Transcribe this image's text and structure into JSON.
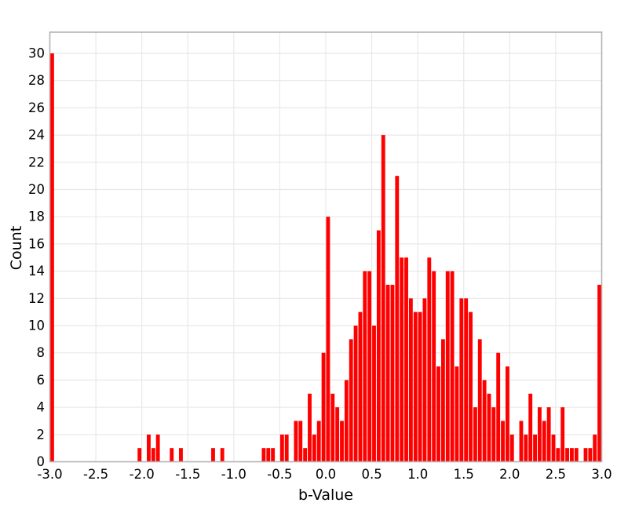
{
  "chart_data": {
    "type": "bar",
    "title": "",
    "xlabel": "b-Value",
    "ylabel": "Count",
    "xlim": [
      -3.0,
      3.0
    ],
    "ylim": [
      0,
      31.5
    ],
    "grid": true,
    "legend": "none",
    "bin_width": 0.05,
    "bar_color": "#fe0000",
    "grid_color": "#e8e8e8",
    "frame_color": "#b2b2b2",
    "text_color": "#000000",
    "x_tick_labels": [
      "-3.0",
      "-2.5",
      "-2.0",
      "-1.5",
      "-1.0",
      "-0.5",
      "0.0",
      "0.5",
      "1.0",
      "1.5",
      "2.0",
      "2.5",
      "3.0"
    ],
    "x_tick_values": [
      -3.0,
      -2.5,
      -2.0,
      -1.5,
      -1.0,
      -0.5,
      0.0,
      0.5,
      1.0,
      1.5,
      2.0,
      2.5,
      3.0
    ],
    "y_tick_labels": [
      "0",
      "2",
      "4",
      "6",
      "8",
      "10",
      "12",
      "14",
      "16",
      "18",
      "20",
      "22",
      "24",
      "26",
      "28",
      "30"
    ],
    "y_tick_values": [
      0,
      2,
      4,
      6,
      8,
      10,
      12,
      14,
      16,
      18,
      20,
      22,
      24,
      26,
      28,
      30
    ],
    "bars": [
      [
        -3.0,
        30
      ],
      [
        -2.05,
        1
      ],
      [
        -1.95,
        2
      ],
      [
        -1.9,
        1
      ],
      [
        -1.85,
        2
      ],
      [
        -1.7,
        1
      ],
      [
        -1.6,
        1
      ],
      [
        -1.25,
        1
      ],
      [
        -1.15,
        1
      ],
      [
        -0.7,
        1
      ],
      [
        -0.65,
        1
      ],
      [
        -0.6,
        1
      ],
      [
        -0.5,
        2
      ],
      [
        -0.45,
        2
      ],
      [
        -0.35,
        3
      ],
      [
        -0.3,
        3
      ],
      [
        -0.25,
        1
      ],
      [
        -0.2,
        5
      ],
      [
        -0.15,
        2
      ],
      [
        -0.1,
        3
      ],
      [
        -0.05,
        8
      ],
      [
        0.0,
        18
      ],
      [
        0.05,
        5
      ],
      [
        0.1,
        4
      ],
      [
        0.15,
        3
      ],
      [
        0.2,
        6
      ],
      [
        0.25,
        9
      ],
      [
        0.3,
        10
      ],
      [
        0.35,
        11
      ],
      [
        0.4,
        14
      ],
      [
        0.45,
        14
      ],
      [
        0.5,
        10
      ],
      [
        0.55,
        17
      ],
      [
        0.6,
        24
      ],
      [
        0.65,
        13
      ],
      [
        0.7,
        13
      ],
      [
        0.75,
        21
      ],
      [
        0.8,
        15
      ],
      [
        0.85,
        15
      ],
      [
        0.9,
        12
      ],
      [
        0.95,
        11
      ],
      [
        1.0,
        11
      ],
      [
        1.05,
        12
      ],
      [
        1.1,
        15
      ],
      [
        1.15,
        14
      ],
      [
        1.2,
        7
      ],
      [
        1.25,
        9
      ],
      [
        1.3,
        14
      ],
      [
        1.35,
        14
      ],
      [
        1.4,
        7
      ],
      [
        1.45,
        12
      ],
      [
        1.5,
        12
      ],
      [
        1.55,
        11
      ],
      [
        1.6,
        4
      ],
      [
        1.65,
        9
      ],
      [
        1.7,
        6
      ],
      [
        1.75,
        5
      ],
      [
        1.8,
        4
      ],
      [
        1.85,
        8
      ],
      [
        1.9,
        3
      ],
      [
        1.95,
        7
      ],
      [
        2.0,
        2
      ],
      [
        2.1,
        3
      ],
      [
        2.15,
        2
      ],
      [
        2.2,
        5
      ],
      [
        2.25,
        2
      ],
      [
        2.3,
        4
      ],
      [
        2.35,
        3
      ],
      [
        2.4,
        4
      ],
      [
        2.45,
        2
      ],
      [
        2.5,
        1
      ],
      [
        2.55,
        4
      ],
      [
        2.6,
        1
      ],
      [
        2.65,
        1
      ],
      [
        2.7,
        1
      ],
      [
        2.8,
        1
      ],
      [
        2.85,
        1
      ],
      [
        2.9,
        2
      ],
      [
        2.95,
        13
      ]
    ]
  }
}
